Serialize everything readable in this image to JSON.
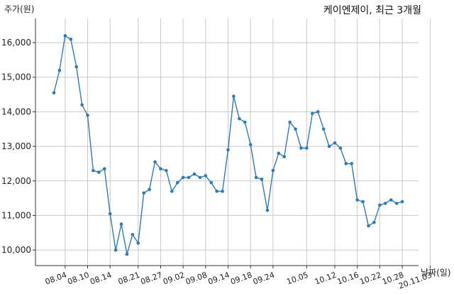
{
  "chart_data": {
    "type": "line",
    "title": "케이엔제이, 최근 3개월",
    "ylabel": "주가(원)",
    "xlabel": "날짜(일)",
    "ylim": [
      9550,
      16700
    ],
    "yticks": [
      10000,
      11000,
      12000,
      13000,
      14000,
      15000,
      16000
    ],
    "ytick_labels": [
      "10,000",
      "11,000",
      "12,000",
      "13,000",
      "14,000",
      "15,000",
      "16,000"
    ],
    "xtick_labels": [
      "08.04",
      "08.10",
      "08.14",
      "08.21",
      "08.27",
      "09.02",
      "09.08",
      "09.14",
      "09.18",
      "09.24",
      "10.05",
      "10.12",
      "10.16",
      "10.22",
      "10.28",
      "20.11.03"
    ],
    "xtick_index": [
      2,
      6,
      10,
      15,
      19,
      23,
      27,
      31,
      35,
      39,
      45,
      50,
      54,
      58,
      62,
      67
    ],
    "grid": true,
    "color": "#2b7bb9",
    "values": [
      14550,
      15200,
      16200,
      16100,
      15300,
      14200,
      13900,
      12300,
      12250,
      12350,
      11050,
      10000,
      10750,
      9880,
      10450,
      10200,
      11650,
      11750,
      12550,
      12350,
      12300,
      11700,
      11950,
      12100,
      12100,
      12200,
      12100,
      12150,
      11950,
      11700,
      11700,
      12900,
      14450,
      13800,
      13700,
      13050,
      12100,
      12050,
      11150,
      12300,
      12800,
      12700,
      13700,
      13500,
      12950,
      12950,
      13950,
      14000,
      13500,
      13000,
      13100,
      12950,
      12500,
      12500,
      11450,
      11400,
      10700,
      10800,
      11300,
      11350,
      11450,
      11350,
      11400
    ]
  }
}
